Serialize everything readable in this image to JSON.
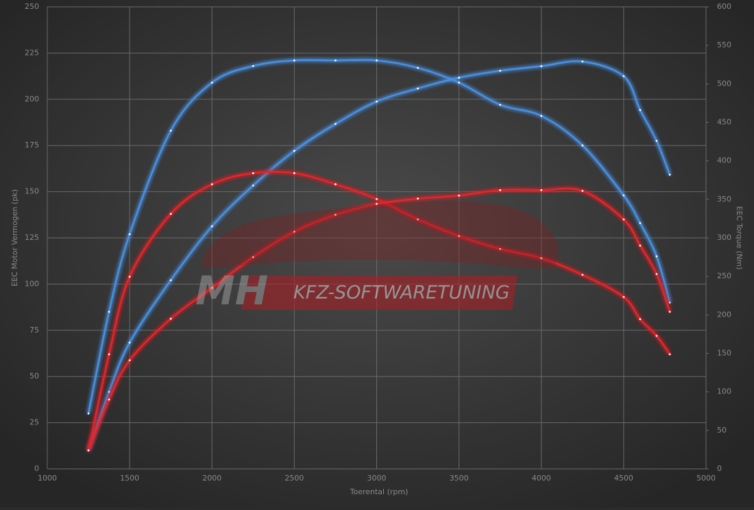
{
  "chart_data": {
    "type": "line",
    "x_label": "Toerental (rpm)",
    "y_label": "EEC Motor Vermogen (pk)",
    "y2_label": "EEC Torque (Nm)",
    "watermark": {
      "logo": "MH",
      "text": "KFZ-SOFTWARETUNING"
    },
    "x": [
      1250,
      1375,
      1500,
      1750,
      2000,
      2250,
      2500,
      2750,
      3000,
      3250,
      3500,
      3750,
      4000,
      4250,
      4500,
      4600,
      4700,
      4780
    ],
    "series": [
      {
        "color": "#4a90e2",
        "axis": "y",
        "values": [
          30,
          85,
          127,
          183,
          209,
          218,
          221,
          221,
          221,
          217,
          209,
          197,
          191,
          175,
          148,
          133,
          115,
          90
        ]
      },
      {
        "color": "#4a90e2",
        "axis": "y2",
        "values": [
          24,
          100,
          164,
          245,
          315,
          368,
          413,
          448,
          477,
          494,
          508,
          517,
          523,
          529,
          510,
          466,
          426,
          382
        ]
      },
      {
        "color": "#e3262c",
        "axis": "y",
        "values": [
          10,
          62,
          104,
          138,
          154,
          160,
          160,
          154,
          146,
          135,
          126,
          119,
          114,
          105,
          93,
          81,
          72,
          62
        ]
      },
      {
        "color": "#e3262c",
        "axis": "y2",
        "values": [
          24,
          90,
          141,
          195,
          235,
          275,
          308,
          330,
          344,
          351,
          355,
          362,
          362,
          361,
          324,
          290,
          253,
          204
        ]
      }
    ],
    "xlim": [
      1000,
      5000
    ],
    "xticks": [
      1000,
      1500,
      2000,
      2500,
      3000,
      3500,
      4000,
      4500,
      5000
    ],
    "ylim": [
      0,
      250
    ],
    "yticks": [
      0,
      25,
      50,
      75,
      100,
      125,
      150,
      175,
      200,
      225,
      250
    ],
    "y2lim": [
      0,
      600
    ],
    "y2ticks": [
      0,
      50,
      100,
      150,
      200,
      250,
      300,
      350,
      400,
      450,
      500,
      550,
      600
    ],
    "grid": true
  }
}
